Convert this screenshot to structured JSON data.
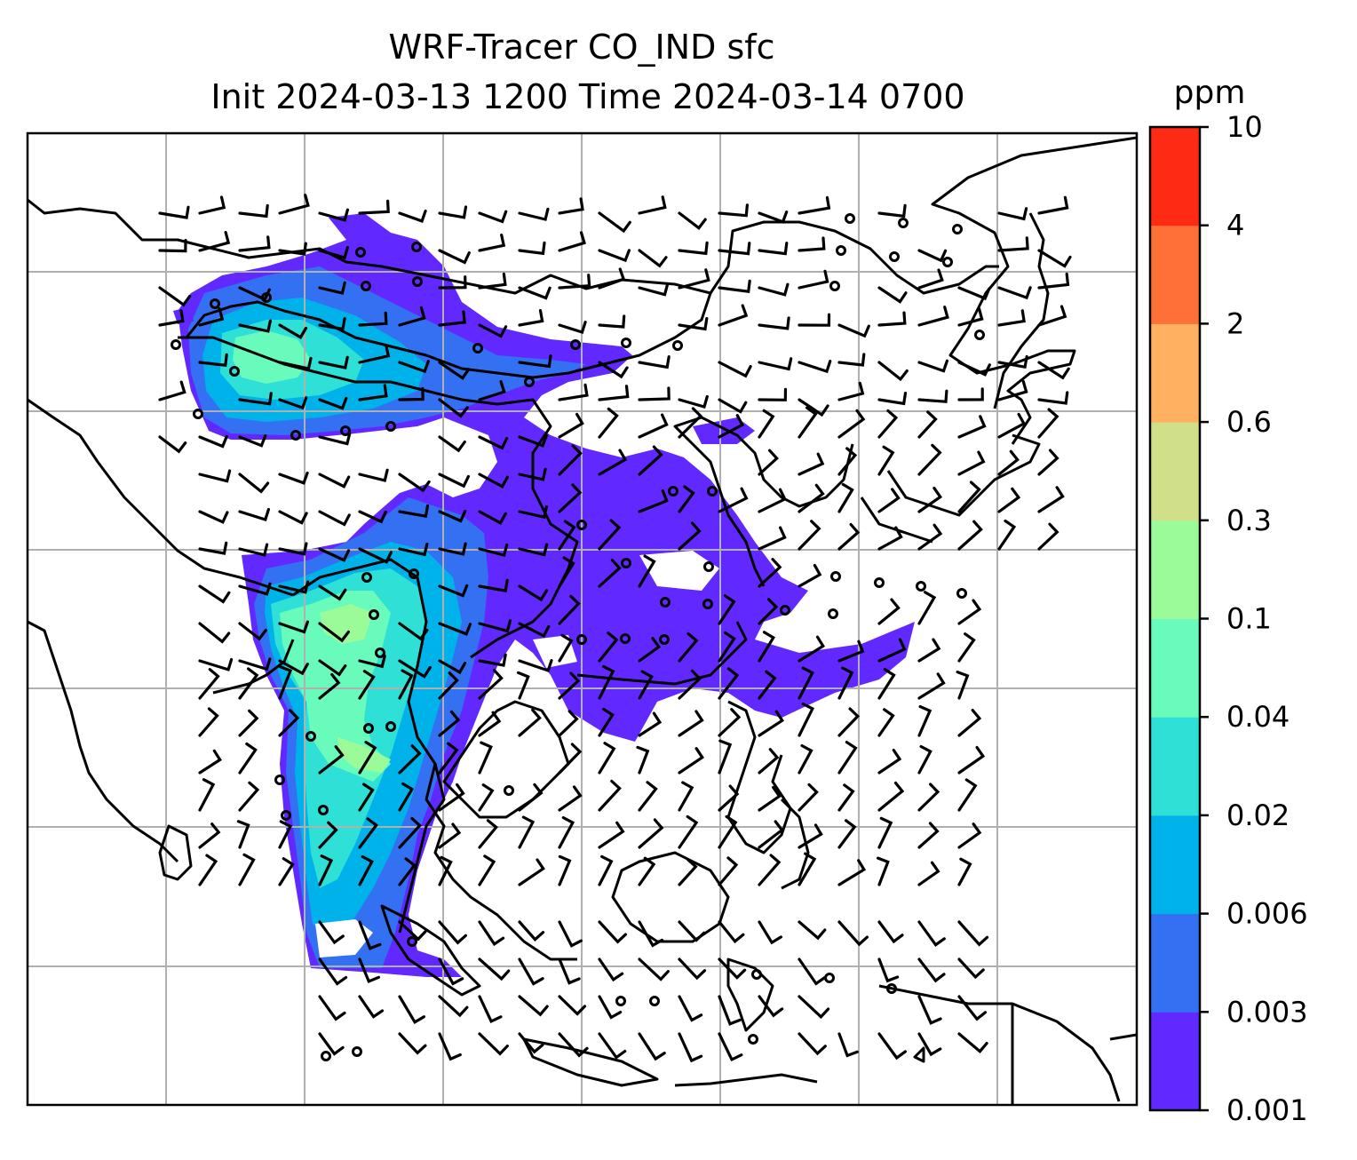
{
  "figure": {
    "title_line1": "WRF-Tracer CO_IND sfc",
    "title_line2": "Init 2024-03-13 1200 Time 2024-03-14 0700"
  },
  "colorbar": {
    "unit": "ppm",
    "levels": [
      "0.001",
      "0.003",
      "0.006",
      "0.02",
      "0.04",
      "0.1",
      "0.3",
      "0.6",
      "2",
      "4",
      "10"
    ],
    "colors": [
      "#6128ff",
      "#3470f2",
      "#00b2ea",
      "#2ee0d6",
      "#68fbbb",
      "#9cfb99",
      "#d0e088",
      "#ffb060",
      "#ff7038",
      "#ff2a14"
    ]
  },
  "map": {
    "coastline_color": "#000000",
    "gridline_color": "#b0b0b0",
    "vector_color": "#000000"
  }
}
